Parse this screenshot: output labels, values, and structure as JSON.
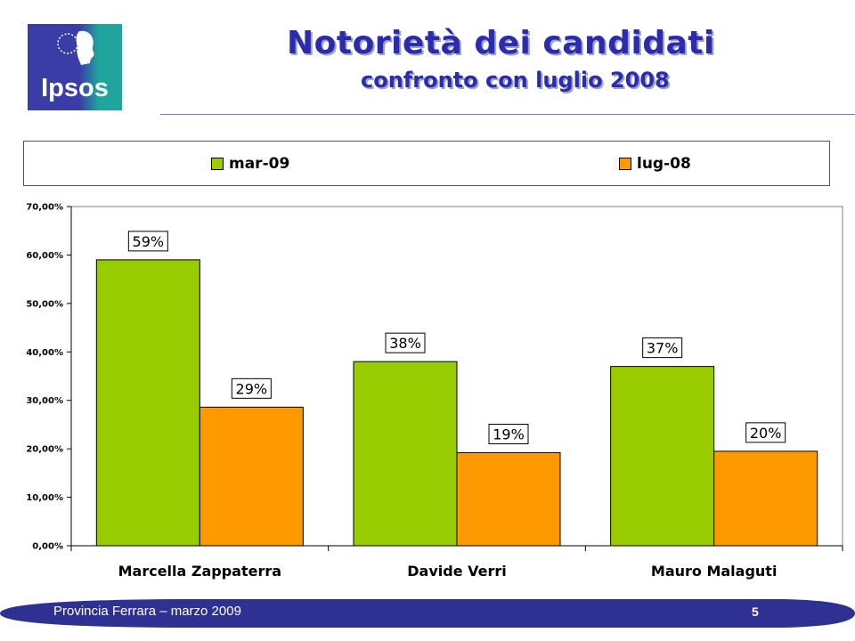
{
  "header": {
    "logo_text": "Ipsos",
    "title": "Notorietà dei candidati",
    "subtitle": "confronto con luglio 2008"
  },
  "colors": {
    "brand_blue": "#2b2bab",
    "logo_blue": "#3a3ca8",
    "logo_teal": "#1fa59c",
    "series_green": "#99cc00",
    "series_orange": "#ff9900",
    "footer_bar": "#2e3192"
  },
  "chart_data": {
    "type": "bar",
    "categories": [
      "Marcella Zappaterra",
      "Davide Verri",
      "Mauro Malaguti"
    ],
    "series": [
      {
        "name": "mar-09",
        "values": [
          59,
          38,
          37
        ],
        "labels": [
          "59%",
          "38%",
          "37%"
        ],
        "color": "#99cc00"
      },
      {
        "name": "lug-08",
        "values": [
          28.6,
          19.2,
          19.5
        ],
        "labels": [
          "29%",
          "19%",
          "20%"
        ],
        "color": "#ff9900"
      }
    ],
    "ylim": [
      0,
      70
    ],
    "yticks": [
      "0,00%",
      "10,00%",
      "20,00%",
      "30,00%",
      "40,00%",
      "50,00%",
      "60,00%",
      "70,00%"
    ],
    "grid": false,
    "legend_position": "top"
  },
  "footer": {
    "text": "Provincia Ferrara – marzo 2009",
    "page_number": "5"
  }
}
